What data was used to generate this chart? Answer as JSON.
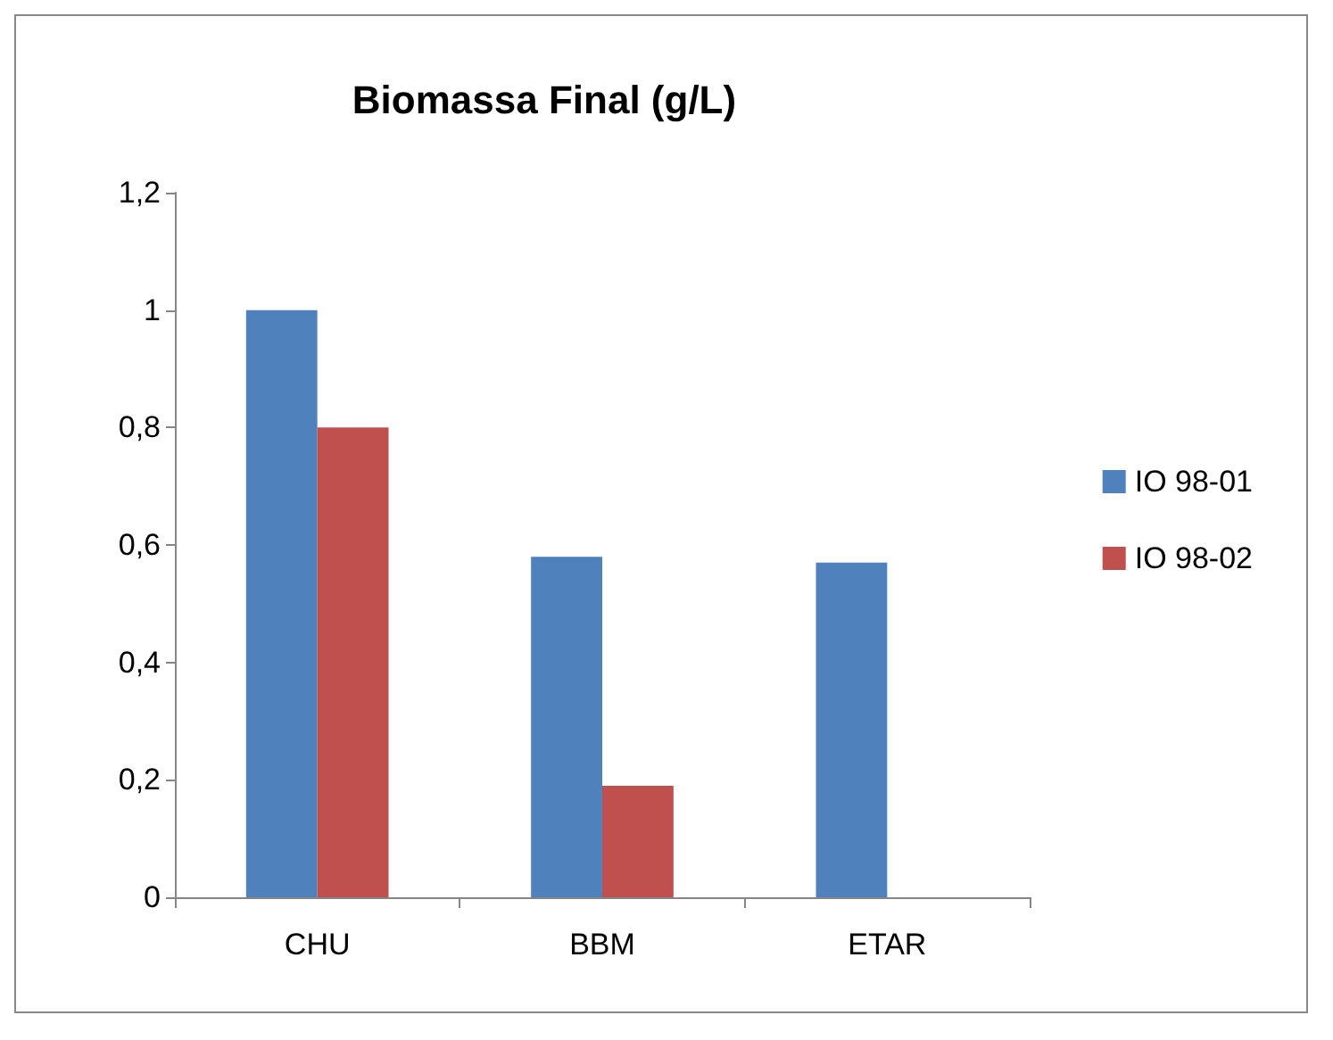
{
  "chart_data": {
    "type": "bar",
    "title": "Biomassa Final (g/L)",
    "categories": [
      "CHU",
      "BBM",
      "ETAR"
    ],
    "series": [
      {
        "name": "IO 98-01",
        "color": "#4f81bd",
        "values": [
          1.0,
          0.58,
          0.57
        ]
      },
      {
        "name": "IO 98-02",
        "color": "#c0504d",
        "values": [
          0.8,
          0.19,
          null
        ]
      }
    ],
    "ylim": [
      0,
      1.2
    ],
    "yticks": [
      {
        "value": 0,
        "label": "0"
      },
      {
        "value": 0.2,
        "label": "0,2"
      },
      {
        "value": 0.4,
        "label": "0,4"
      },
      {
        "value": 0.6,
        "label": "0,6"
      },
      {
        "value": 0.8,
        "label": "0,8"
      },
      {
        "value": 1,
        "label": "1"
      },
      {
        "value": 1.2,
        "label": "1,2"
      }
    ],
    "grid": false,
    "legend": "right"
  }
}
